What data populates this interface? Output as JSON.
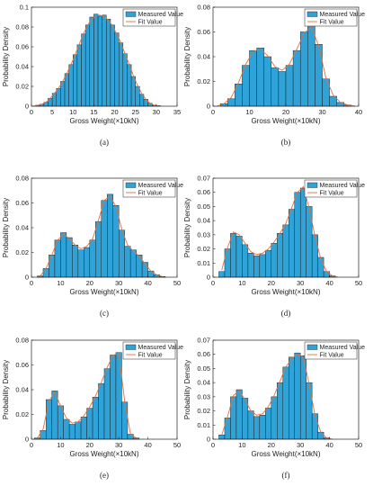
{
  "colors": {
    "bar": "#2fa3d8",
    "bar_edge": "#1a1a1a",
    "fit": "#e07040",
    "axis": "#222222"
  },
  "chart_data": [
    {
      "id": "a",
      "type": "bar",
      "caption": "(a)",
      "xlabel": "Gross Weight(×10kN)",
      "ylabel": "Probability Density",
      "xlim": [
        0,
        35
      ],
      "ylim": [
        0,
        0.1
      ],
      "xticks": [
        "0",
        "5",
        "10",
        "15",
        "20",
        "25",
        "30",
        "35"
      ],
      "yticks": [
        "0",
        "0.02",
        "0.04",
        "0.06",
        "0.08",
        "0.1"
      ],
      "legend": [
        "Measured Value",
        "Fit Value"
      ],
      "legend_position": "top-right",
      "x": [
        0.5,
        1.5,
        2.5,
        3.5,
        4.5,
        5.5,
        6.5,
        7.5,
        8.5,
        9.5,
        10.5,
        11.5,
        12.5,
        13.5,
        14.5,
        15.5,
        16.5,
        17.5,
        18.5,
        19.5,
        20.5,
        21.5,
        22.5,
        23.5,
        24.5,
        25.5,
        26.5,
        27.5,
        28.5,
        29.5,
        30.5
      ],
      "series": [
        {
          "name": "Measured Value",
          "values": [
            0,
            0.001,
            0.002,
            0.004,
            0.008,
            0.013,
            0.018,
            0.025,
            0.033,
            0.042,
            0.052,
            0.062,
            0.073,
            0.082,
            0.09,
            0.093,
            0.091,
            0.092,
            0.088,
            0.082,
            0.074,
            0.064,
            0.053,
            0.042,
            0.03,
            0.02,
            0.012,
            0.007,
            0.003,
            0.001,
            0.0005
          ]
        },
        {
          "name": "Fit Value",
          "values": [
            0,
            0.001,
            0.002,
            0.004,
            0.008,
            0.013,
            0.018,
            0.025,
            0.033,
            0.042,
            0.052,
            0.063,
            0.073,
            0.082,
            0.088,
            0.091,
            0.092,
            0.09,
            0.087,
            0.081,
            0.073,
            0.064,
            0.053,
            0.042,
            0.031,
            0.021,
            0.013,
            0.007,
            0.003,
            0.001,
            0.0005
          ]
        }
      ]
    },
    {
      "id": "b",
      "type": "bar",
      "caption": "(b)",
      "xlabel": "Gross Weight(×10kN)",
      "ylabel": "Probability Density",
      "xlim": [
        0,
        40
      ],
      "ylim": [
        0,
        0.08
      ],
      "xticks": [
        "0",
        "10",
        "20",
        "30",
        "40"
      ],
      "yticks": [
        "0",
        "0.02",
        "0.04",
        "0.06",
        "0.08"
      ],
      "legend": [
        "Measured Value",
        "Fit Value"
      ],
      "legend_position": "top-right",
      "x": [
        1,
        3,
        5,
        7,
        9,
        11,
        13,
        15,
        17,
        19,
        21,
        23,
        25,
        27,
        29,
        31,
        33,
        35,
        37,
        39
      ],
      "series": [
        {
          "name": "Measured Value",
          "values": [
            0,
            0.002,
            0.006,
            0.018,
            0.033,
            0.045,
            0.047,
            0.04,
            0.031,
            0.028,
            0.033,
            0.045,
            0.06,
            0.065,
            0.05,
            0.022,
            0.008,
            0.003,
            0.001,
            0
          ]
        },
        {
          "name": "Fit Value",
          "values": [
            0,
            0.002,
            0.007,
            0.019,
            0.034,
            0.044,
            0.046,
            0.041,
            0.032,
            0.029,
            0.034,
            0.046,
            0.059,
            0.064,
            0.049,
            0.023,
            0.009,
            0.003,
            0.001,
            0
          ]
        }
      ]
    },
    {
      "id": "c",
      "type": "bar",
      "caption": "(c)",
      "xlabel": "Gross Weight(×10kN)",
      "ylabel": "Probability Density",
      "xlim": [
        0,
        50
      ],
      "ylim": [
        0,
        0.08
      ],
      "xticks": [
        "0",
        "10",
        "20",
        "30",
        "40",
        "50"
      ],
      "yticks": [
        "0",
        "0.02",
        "0.04",
        "0.06",
        "0.08"
      ],
      "legend": [
        "Measured Value",
        "Fit Value"
      ],
      "legend_position": "top-right",
      "x": [
        3,
        5,
        7,
        9,
        11,
        13,
        15,
        17,
        19,
        21,
        23,
        25,
        27,
        29,
        31,
        33,
        35,
        37,
        39,
        41,
        43,
        45
      ],
      "series": [
        {
          "name": "Measured Value",
          "values": [
            0.001,
            0.007,
            0.018,
            0.03,
            0.036,
            0.032,
            0.026,
            0.022,
            0.024,
            0.03,
            0.045,
            0.062,
            0.067,
            0.058,
            0.038,
            0.025,
            0.022,
            0.018,
            0.012,
            0.005,
            0.002,
            0.0005
          ]
        },
        {
          "name": "Fit Value",
          "values": [
            0.001,
            0.007,
            0.018,
            0.03,
            0.035,
            0.031,
            0.026,
            0.023,
            0.025,
            0.031,
            0.046,
            0.062,
            0.066,
            0.057,
            0.039,
            0.026,
            0.021,
            0.017,
            0.011,
            0.005,
            0.002,
            0.0005
          ]
        }
      ]
    },
    {
      "id": "d",
      "type": "bar",
      "caption": "(d)",
      "xlabel": "Gross Weight(×10kN)",
      "ylabel": "Probability Density",
      "xlim": [
        0,
        50
      ],
      "ylim": [
        0,
        0.07
      ],
      "xticks": [
        "0",
        "10",
        "20",
        "30",
        "40",
        "50"
      ],
      "yticks": [
        "0",
        "0.01",
        "0.02",
        "0.03",
        "0.04",
        "0.05",
        "0.06",
        "0.07"
      ],
      "legend": [
        "Measured Value",
        "Fit Value"
      ],
      "legend_position": "top-right",
      "x": [
        3,
        5,
        7,
        9,
        11,
        13,
        15,
        17,
        19,
        21,
        23,
        25,
        27,
        29,
        31,
        33,
        35,
        37,
        39,
        41,
        43
      ],
      "series": [
        {
          "name": "Measured Value",
          "values": [
            0.004,
            0.02,
            0.031,
            0.029,
            0.023,
            0.017,
            0.015,
            0.016,
            0.019,
            0.024,
            0.031,
            0.037,
            0.048,
            0.06,
            0.063,
            0.05,
            0.03,
            0.014,
            0.004,
            0.001,
            0
          ]
        },
        {
          "name": "Fit Value",
          "values": [
            0.005,
            0.021,
            0.032,
            0.03,
            0.024,
            0.018,
            0.016,
            0.017,
            0.02,
            0.025,
            0.031,
            0.038,
            0.049,
            0.06,
            0.064,
            0.049,
            0.029,
            0.013,
            0.004,
            0.001,
            0
          ]
        }
      ]
    },
    {
      "id": "e",
      "type": "bar",
      "caption": "(e)",
      "xlabel": "Gross Weight(×10kN)",
      "ylabel": "Probability Density",
      "xlim": [
        0,
        50
      ],
      "ylim": [
        0,
        0.08
      ],
      "xticks": [
        "0",
        "10",
        "20",
        "30",
        "40",
        "50"
      ],
      "yticks": [
        "0",
        "0.02",
        "0.04",
        "0.06",
        "0.08"
      ],
      "legend": [
        "Measured Value",
        "Fit Value"
      ],
      "legend_position": "top-right",
      "x": [
        2,
        4,
        6,
        8,
        10,
        12,
        14,
        16,
        18,
        20,
        22,
        24,
        26,
        28,
        30,
        32,
        34,
        36
      ],
      "series": [
        {
          "name": "Measured Value",
          "values": [
            0.001,
            0.007,
            0.032,
            0.039,
            0.027,
            0.016,
            0.012,
            0.014,
            0.018,
            0.025,
            0.034,
            0.045,
            0.057,
            0.068,
            0.07,
            0.03,
            0.004,
            0.001
          ]
        },
        {
          "name": "Fit Value",
          "values": [
            0.001,
            0.008,
            0.031,
            0.038,
            0.027,
            0.017,
            0.013,
            0.014,
            0.019,
            0.026,
            0.035,
            0.046,
            0.058,
            0.068,
            0.069,
            0.031,
            0.004,
            0.001
          ]
        }
      ]
    },
    {
      "id": "f",
      "type": "bar",
      "caption": "(f)",
      "xlabel": "Gross Weight(×10kN)",
      "ylabel": "Probability Density",
      "xlim": [
        0,
        50
      ],
      "ylim": [
        0,
        0.07
      ],
      "xticks": [
        "0",
        "10",
        "20",
        "30",
        "40",
        "50"
      ],
      "yticks": [
        "0",
        "0.01",
        "0.02",
        "0.03",
        "0.04",
        "0.05",
        "0.06",
        "0.07"
      ],
      "legend": [
        "Measured Value",
        "Fit Value"
      ],
      "legend_position": "top-right",
      "x": [
        3,
        5,
        7,
        9,
        11,
        13,
        15,
        17,
        19,
        21,
        23,
        25,
        27,
        29,
        31,
        33,
        35,
        37,
        39,
        41
      ],
      "series": [
        {
          "name": "Measured Value",
          "values": [
            0.003,
            0.015,
            0.03,
            0.035,
            0.029,
            0.02,
            0.016,
            0.017,
            0.022,
            0.03,
            0.04,
            0.051,
            0.058,
            0.061,
            0.059,
            0.04,
            0.018,
            0.005,
            0.001,
            0
          ]
        },
        {
          "name": "Fit Value",
          "values": [
            0.003,
            0.016,
            0.031,
            0.034,
            0.028,
            0.02,
            0.017,
            0.018,
            0.023,
            0.031,
            0.041,
            0.051,
            0.057,
            0.06,
            0.058,
            0.039,
            0.017,
            0.005,
            0.001,
            0
          ]
        }
      ]
    }
  ]
}
